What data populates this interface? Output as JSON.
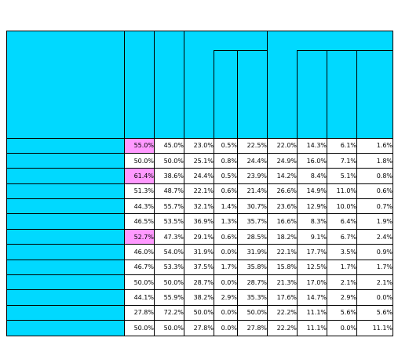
{
  "title": "",
  "subtitle": "",
  "header": {
    "uncollected": "",
    "occurred": "",
    "bad_debt": "",
    "bad_big": "",
    "bad_small": "",
    "delay": "",
    "full": "",
    "partial": "",
    "none": ""
  },
  "rows": [
    {
      "label": "",
      "values": [
        "55.0%",
        "45.0%",
        "23.0%",
        "0.5%",
        "22.5%",
        "22.0%",
        "14.3%",
        "6.1%",
        "1.6%"
      ],
      "highlight": true
    },
    {
      "label": "",
      "values": [
        "50.0%",
        "50.0%",
        "25.1%",
        "0.8%",
        "24.4%",
        "24.9%",
        "16.0%",
        "7.1%",
        "1.8%"
      ],
      "highlight": false
    },
    {
      "label": "",
      "values": [
        "61.4%",
        "38.6%",
        "24.4%",
        "0.5%",
        "23.9%",
        "14.2%",
        "8.4%",
        "5.1%",
        "0.8%"
      ],
      "highlight": true
    },
    {
      "label": "",
      "values": [
        "51.3%",
        "48.7%",
        "22.1%",
        "0.6%",
        "21.4%",
        "26.6%",
        "14.9%",
        "11.0%",
        "0.6%"
      ],
      "highlight": false
    },
    {
      "label": "",
      "values": [
        "44.3%",
        "55.7%",
        "32.1%",
        "1.4%",
        "30.7%",
        "23.6%",
        "12.9%",
        "10.0%",
        "0.7%"
      ],
      "highlight": false
    },
    {
      "label": "",
      "values": [
        "46.5%",
        "53.5%",
        "36.9%",
        "1.3%",
        "35.7%",
        "16.6%",
        "8.3%",
        "6.4%",
        "1.9%"
      ],
      "highlight": false
    },
    {
      "label": "",
      "values": [
        "52.7%",
        "47.3%",
        "29.1%",
        "0.6%",
        "28.5%",
        "18.2%",
        "9.1%",
        "6.7%",
        "2.4%"
      ],
      "highlight": true
    },
    {
      "label": "",
      "values": [
        "46.0%",
        "54.0%",
        "31.9%",
        "0.0%",
        "31.9%",
        "22.1%",
        "17.7%",
        "3.5%",
        "0.9%"
      ],
      "highlight": false
    },
    {
      "label": "",
      "values": [
        "46.7%",
        "53.3%",
        "37.5%",
        "1.7%",
        "35.8%",
        "15.8%",
        "12.5%",
        "1.7%",
        "1.7%"
      ],
      "highlight": false
    },
    {
      "label": "",
      "values": [
        "50.0%",
        "50.0%",
        "28.7%",
        "0.0%",
        "28.7%",
        "21.3%",
        "17.0%",
        "2.1%",
        "2.1%"
      ],
      "highlight": false
    },
    {
      "label": "",
      "values": [
        "44.1%",
        "55.9%",
        "38.2%",
        "2.9%",
        "35.3%",
        "17.6%",
        "14.7%",
        "2.9%",
        "0.0%"
      ],
      "highlight": false
    },
    {
      "label": "",
      "values": [
        "27.8%",
        "72.2%",
        "50.0%",
        "0.0%",
        "50.0%",
        "22.2%",
        "11.1%",
        "5.6%",
        "5.6%"
      ],
      "highlight": false
    },
    {
      "label": "",
      "values": [
        "50.0%",
        "50.0%",
        "27.8%",
        "0.0%",
        "27.8%",
        "22.2%",
        "11.1%",
        "0.0%",
        "11.1%"
      ],
      "highlight": false
    }
  ],
  "note": "",
  "colors": {
    "header_bg": "#00d9ff",
    "highlight_bg": "#ff99ff"
  }
}
